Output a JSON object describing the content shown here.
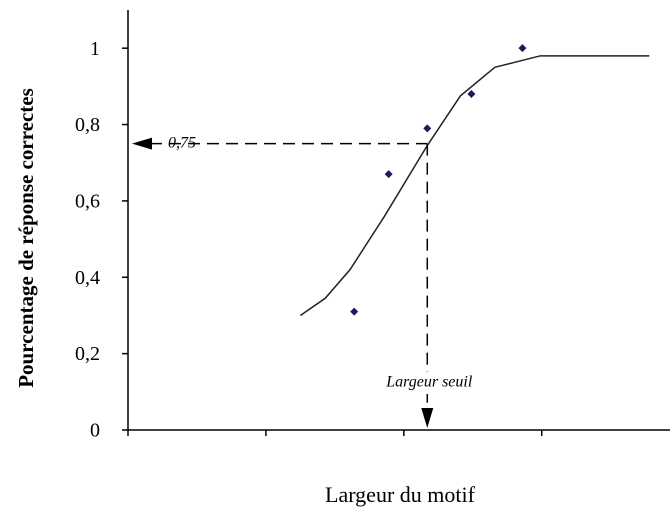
{
  "chart_data": {
    "type": "scatter",
    "ylabel": "Pourcentage de réponse correctes",
    "xlabel": "Largeur du motif",
    "xlim": [
      0,
      3.93
    ],
    "xticks": [
      0,
      1,
      2,
      3
    ],
    "ylim": [
      0,
      1.1
    ],
    "yticks": [
      0,
      {
        "value": 0.2,
        "label": "0,2"
      },
      {
        "value": 0.4,
        "label": "0,4"
      },
      {
        "value": 0.6,
        "label": "0,6"
      },
      {
        "value": 0.8,
        "label": "0,8"
      },
      1
    ],
    "series": [
      {
        "color": "#1a1a5e",
        "x": [
          1.64,
          1.89,
          2.17,
          2.49,
          2.86
        ],
        "values": [
          0.31,
          0.67,
          0.79,
          0.88,
          1.0
        ]
      }
    ],
    "fit": {
      "color": "#222",
      "x": [
        1.25,
        1.43,
        1.61,
        1.86,
        2.17,
        2.41,
        2.66,
        2.99,
        3.78
      ],
      "values": [
        0.3,
        0.345,
        0.42,
        0.56,
        0.745,
        0.875,
        0.95,
        0.98,
        0.98
      ]
    },
    "threshold": {
      "value": 0.75,
      "label": "0,75",
      "x": 2.17,
      "x_label": "Largeur seuil"
    }
  }
}
